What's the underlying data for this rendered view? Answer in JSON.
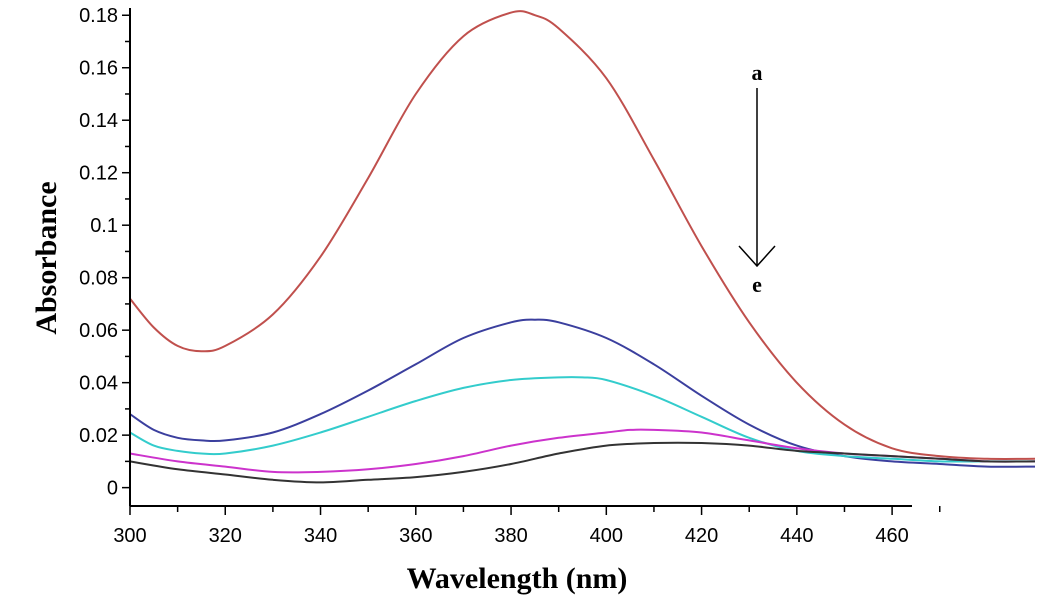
{
  "chart_data": {
    "type": "line",
    "title": "",
    "xlabel": "Wavelength (nm)",
    "ylabel": "Absorbance",
    "xlim": [
      300,
      490
    ],
    "ylim": [
      -0.007,
      0.182
    ],
    "xticks": [
      "300",
      "320",
      "340",
      "360",
      "380",
      "400",
      "420",
      "440",
      "460"
    ],
    "yticks": [
      "0",
      "0.02",
      "0.04",
      "0.06",
      "0.08",
      "0.1",
      "0.12",
      "0.14",
      "0.16",
      "0.18"
    ],
    "grid": false,
    "annotations": {
      "arrow_start_label": "a",
      "arrow_end_label": "e"
    },
    "series": [
      {
        "color": "#c0504d",
        "x": [
          300,
          305,
          310,
          315,
          320,
          330,
          340,
          350,
          360,
          370,
          380,
          385,
          390,
          400,
          410,
          420,
          430,
          440,
          450,
          460,
          470,
          480,
          490
        ],
        "y": [
          0.072,
          0.061,
          0.054,
          0.052,
          0.054,
          0.066,
          0.088,
          0.118,
          0.15,
          0.172,
          0.181,
          0.18,
          0.175,
          0.156,
          0.125,
          0.092,
          0.063,
          0.04,
          0.024,
          0.015,
          0.012,
          0.011,
          0.011
        ]
      },
      {
        "color": "#3b3f9e",
        "x": [
          300,
          305,
          310,
          315,
          320,
          330,
          340,
          350,
          360,
          370,
          380,
          385,
          390,
          400,
          410,
          420,
          430,
          440,
          450,
          460,
          470,
          480,
          490
        ],
        "y": [
          0.028,
          0.022,
          0.019,
          0.018,
          0.018,
          0.021,
          0.028,
          0.037,
          0.047,
          0.057,
          0.063,
          0.064,
          0.063,
          0.057,
          0.047,
          0.035,
          0.024,
          0.016,
          0.012,
          0.01,
          0.009,
          0.008,
          0.008
        ]
      },
      {
        "color": "#33cccc",
        "x": [
          300,
          305,
          310,
          315,
          320,
          330,
          340,
          350,
          360,
          370,
          380,
          390,
          395,
          400,
          410,
          420,
          430,
          440,
          450,
          460,
          470,
          480,
          490
        ],
        "y": [
          0.021,
          0.016,
          0.014,
          0.013,
          0.013,
          0.016,
          0.021,
          0.027,
          0.033,
          0.038,
          0.041,
          0.042,
          0.042,
          0.041,
          0.035,
          0.027,
          0.019,
          0.014,
          0.012,
          0.011,
          0.01,
          0.01,
          0.01
        ]
      },
      {
        "color": "#cc33cc",
        "x": [
          300,
          310,
          320,
          330,
          340,
          350,
          360,
          370,
          380,
          390,
          400,
          405,
          410,
          420,
          430,
          440,
          450,
          460,
          470,
          480,
          490
        ],
        "y": [
          0.013,
          0.01,
          0.008,
          0.006,
          0.006,
          0.007,
          0.009,
          0.012,
          0.016,
          0.019,
          0.021,
          0.022,
          0.022,
          0.021,
          0.018,
          0.015,
          0.013,
          0.012,
          0.011,
          0.01,
          0.01
        ]
      },
      {
        "color": "#333333",
        "x": [
          300,
          310,
          320,
          330,
          340,
          350,
          360,
          370,
          380,
          390,
          400,
          410,
          420,
          430,
          440,
          450,
          460,
          470,
          480,
          490
        ],
        "y": [
          0.01,
          0.007,
          0.005,
          0.003,
          0.002,
          0.003,
          0.004,
          0.006,
          0.009,
          0.013,
          0.016,
          0.017,
          0.017,
          0.016,
          0.014,
          0.013,
          0.012,
          0.011,
          0.01,
          0.01
        ]
      }
    ]
  }
}
